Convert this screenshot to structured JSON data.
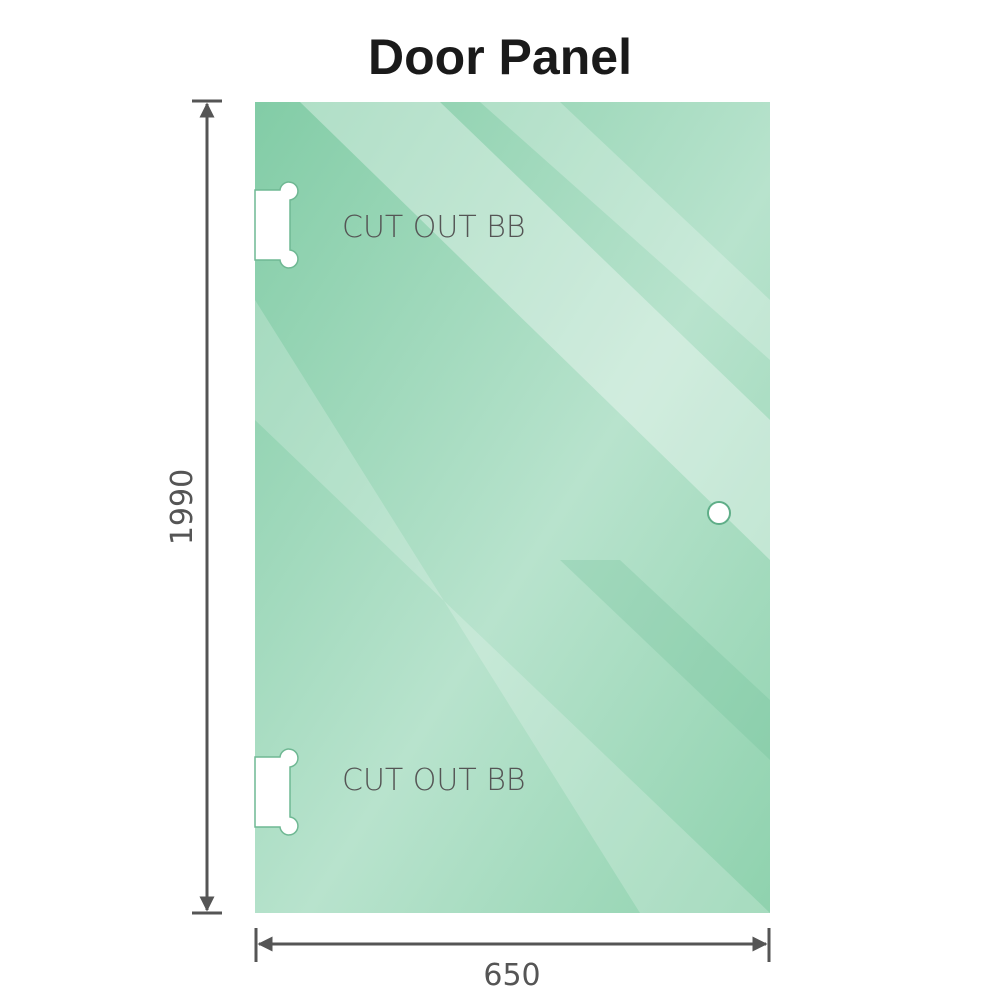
{
  "title": "Door Panel",
  "panel": {
    "color": "#8dd1ad",
    "cutouts": [
      {
        "label": "CUT OUT BB"
      },
      {
        "label": "CUT OUT BB"
      }
    ],
    "handle_hole": true
  },
  "dimensions": {
    "height": "1990",
    "width": "650",
    "arrow_color": "#555555"
  }
}
